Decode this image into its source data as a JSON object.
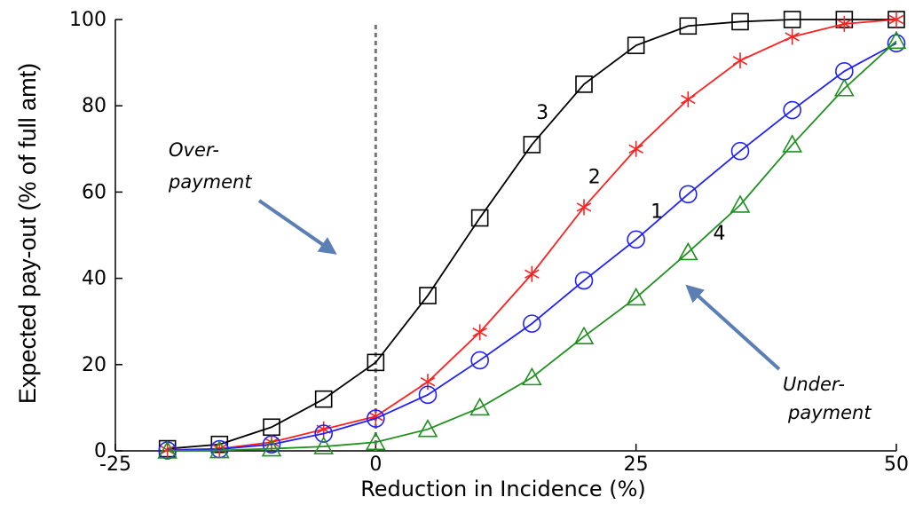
{
  "chart_data": {
    "type": "line",
    "xlabel": "Reduction in Incidence (%)",
    "ylabel": "Expected pay-out (% of full amt)",
    "xlim": [
      -25,
      50
    ],
    "ylim": [
      0,
      100
    ],
    "xticks": [
      -25,
      0,
      25,
      50
    ],
    "yticks": [
      0,
      20,
      40,
      60,
      80,
      100
    ],
    "x": [
      -20,
      -15,
      -10,
      -5,
      0,
      5,
      10,
      15,
      20,
      25,
      30,
      35,
      40,
      45,
      50
    ],
    "reference_line": {
      "x": 0,
      "style": "dotted",
      "color": "#777777"
    },
    "series": [
      {
        "name": "3",
        "color": "#000000",
        "marker": "square",
        "values": [
          0.5,
          1.5,
          5.5,
          12,
          20.5,
          36,
          54,
          71,
          85,
          94,
          98.5,
          99.5,
          100,
          100,
          100
        ]
      },
      {
        "name": "2",
        "color": "#ff2020",
        "marker": "asterisk",
        "values": [
          0.2,
          0.5,
          2,
          5,
          8,
          16,
          27.5,
          41,
          56.5,
          70,
          81.5,
          90.5,
          96,
          99,
          100
        ]
      },
      {
        "name": "1",
        "color": "#2020ff",
        "marker": "circle",
        "values": [
          0.1,
          0.4,
          1.5,
          4,
          7.5,
          13,
          21,
          29.5,
          39.5,
          49,
          59.5,
          69.5,
          79,
          88,
          94.5
        ]
      },
      {
        "name": "4",
        "color": "#209020",
        "marker": "triangle",
        "values": [
          0,
          0.1,
          0.5,
          1,
          2,
          5,
          10,
          17,
          26.5,
          35.5,
          46,
          57,
          71,
          84,
          95
        ]
      }
    ],
    "curve_labels": [
      {
        "text": "3",
        "x": 16,
        "y": 77
      },
      {
        "text": "2",
        "x": 21,
        "y": 62
      },
      {
        "text": "1",
        "x": 27,
        "y": 54
      },
      {
        "text": "4",
        "x": 33,
        "y": 49
      }
    ],
    "annotations": [
      {
        "text_lines": [
          "Over-",
          "payment"
        ],
        "arrow_to": [
          -4,
          46
        ]
      },
      {
        "text_lines": [
          "Under-",
          "payment"
        ],
        "arrow_to": [
          30,
          38
        ]
      }
    ],
    "grid": false
  }
}
